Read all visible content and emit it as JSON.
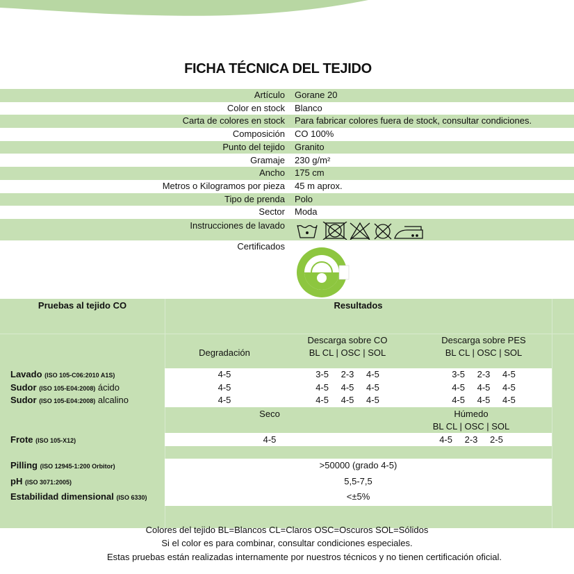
{
  "title": "FICHA TÉCNICA DEL TEJIDO",
  "colors": {
    "band": "#c6e0b4",
    "wave": "#b8d7a3",
    "logo": "#8dc63f"
  },
  "specs": [
    {
      "label": "Artículo",
      "value": "Gorane 20"
    },
    {
      "label": "Color en stock",
      "value": "Blanco"
    },
    {
      "label": "Carta de colores en stock",
      "value": "Para fabricar colores fuera de stock, consultar condiciones."
    },
    {
      "label": "Composición",
      "value": "CO 100%"
    },
    {
      "label": "Punto del tejido",
      "value": "Granito"
    },
    {
      "label": "Gramaje",
      "value": "230 g/m²"
    },
    {
      "label": "Ancho",
      "value": "175 cm"
    },
    {
      "label": "Metros o Kilogramos por pieza",
      "value": "45 m aprox."
    },
    {
      "label": "Tipo de prenda",
      "value": "Polo"
    },
    {
      "label": "Sector",
      "value": "Moda"
    }
  ],
  "care": {
    "label": "Instrucciones de lavado",
    "icons": [
      "wash-30-icon",
      "no-tumble-dry-icon",
      "no-bleach-icon",
      "no-dry-clean-icon",
      "iron-medium-icon"
    ]
  },
  "certs": {
    "label": "Certificados",
    "logo_text": "RE-ECO TEXTILES - ORGANIC COTTON"
  },
  "tests": {
    "header_left": "Pruebas al tejido CO",
    "header_right": "Resultados",
    "col_degradacion": "Degradación",
    "col_co": "Descarga sobre CO",
    "col_pes": "Descarga sobre PES",
    "subcols": "BL CL | OSC | SOL",
    "rows": [
      {
        "name": "Lavado",
        "std": "(ISO 105-C06:2010 A1S)",
        "suffix": "",
        "deg": "4-5",
        "co": "3-5 2-3 4-5",
        "pes": "3-5 2-3 4-5"
      },
      {
        "name": "Sudor",
        "std": "(ISO 105-E04:2008)",
        "suffix": "ácido",
        "deg": "4-5",
        "co": "4-5 4-5 4-5",
        "pes": "4-5 4-5 4-5"
      },
      {
        "name": "Sudor",
        "std": "(ISO 105-E04:2008)",
        "suffix": "alcalino",
        "deg": "4-5",
        "co": "4-5 4-5 4-5",
        "pes": "4-5 4-5 4-5"
      }
    ],
    "frote": {
      "name": "Frote",
      "std": "(ISO 105-X12)",
      "seco_label": "Seco",
      "humedo_label": "Húmedo",
      "subcols": "BL CL | OSC | SOL",
      "seco": "4-5",
      "humedo": "4-5 2-3 2-5"
    },
    "other": [
      {
        "name": "Pilling",
        "std": "(ISO 12945-1:200 Orbitor)",
        "value": ">50000 (grado 4-5)"
      },
      {
        "name": "pH",
        "std": "(ISO 3071:2005)",
        "value": "5,5-7,5"
      },
      {
        "name": "Estabilidad dimensional",
        "std": "(ISO 6330)",
        "value": "<±5%"
      }
    ]
  },
  "notes": [
    "Colores del tejido BL=Blancos CL=Claros OSC=Oscuros SOL=Sólidos",
    "Si el color es para combinar, consultar condiciones especiales."
  ],
  "disclaimer": "Estas pruebas están realizadas internamente por nuestros técnicos y no tienen certificación oficial."
}
